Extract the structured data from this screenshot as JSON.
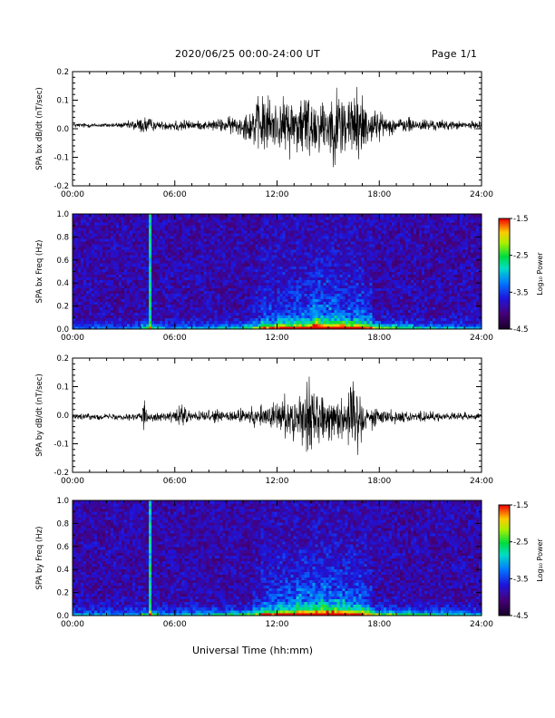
{
  "header": {
    "title": "2020/06/25  00:00-24:00 UT",
    "page": "Page 1/1"
  },
  "xaxis_title": "Universal Time (hh:mm)",
  "chart_data": [
    {
      "type": "line",
      "ylabel": "SPA bx dB/dt (nT/sec)",
      "xlim": [
        0,
        24
      ],
      "ylim": [
        -0.2,
        0.2
      ],
      "x_tick_labels": [
        "00:00",
        "06:00",
        "12:00",
        "18:00",
        "24:00"
      ],
      "y_tick_labels": [
        "-0.2",
        "-0.1",
        "0.0",
        "0.1",
        "0.2"
      ],
      "envelope": {
        "x": [
          0,
          2,
          3,
          4.3,
          5,
          6.4,
          7,
          8,
          9,
          10,
          10.5,
          11,
          11.5,
          12,
          12.5,
          13,
          13.5,
          14,
          14.5,
          15,
          15.5,
          16,
          16.5,
          17,
          17.5,
          18,
          18.5,
          19,
          20,
          21,
          22,
          23,
          24
        ],
        "amp": [
          0.012,
          0.012,
          0.014,
          0.05,
          0.018,
          0.04,
          0.02,
          0.025,
          0.04,
          0.06,
          0.1,
          0.15,
          0.17,
          0.11,
          0.14,
          0.16,
          0.18,
          0.19,
          0.14,
          0.16,
          0.19,
          0.2,
          0.2,
          0.17,
          0.1,
          0.07,
          0.05,
          0.04,
          0.04,
          0.03,
          0.025,
          0.02,
          0.02
        ]
      },
      "offset": 0.012
    },
    {
      "type": "heatmap",
      "ylabel": "SPA bx Freq (Hz)",
      "xlim": [
        0,
        24
      ],
      "ylim": [
        0,
        1.0
      ],
      "x_tick_labels": [
        "00:00",
        "06:00",
        "12:00",
        "18:00",
        "24:00"
      ],
      "y_tick_labels": [
        "0.0",
        "0.2",
        "0.4",
        "0.6",
        "0.8",
        "1.0"
      ],
      "colorbar": {
        "label": "Log₁₀ Power",
        "ticks": [
          "-1.5",
          "-2.5",
          "-3.5",
          "-4.5"
        ],
        "range": [
          -4.5,
          -1.5
        ]
      },
      "activity": [
        0.5,
        0.5,
        0.5,
        0.55,
        1.0,
        0.6,
        0.7,
        0.75,
        0.8,
        0.9,
        1.2,
        1.5,
        1.6,
        1.7,
        2.0,
        1.9,
        1.7,
        1.5,
        1.3,
        1.1,
        0.9,
        0.8,
        0.7,
        0.6
      ]
    },
    {
      "type": "line",
      "ylabel": "SPA by dB/dt (nT/sec)",
      "xlim": [
        0,
        24
      ],
      "ylim": [
        -0.2,
        0.2
      ],
      "x_tick_labels": [
        "00:00",
        "06:00",
        "12:00",
        "18:00",
        "24:00"
      ],
      "y_tick_labels": [
        "-0.2",
        "-0.1",
        "0.0",
        "0.1",
        "0.2"
      ],
      "envelope": {
        "x": [
          0,
          2,
          3,
          4,
          4.2,
          4.5,
          5,
          6,
          6.3,
          7,
          8,
          9,
          10,
          11,
          11.5,
          12,
          12.5,
          13,
          13.5,
          14,
          14.5,
          15,
          15.5,
          16,
          16.5,
          17,
          17.5,
          18,
          19,
          20,
          21,
          22,
          23,
          24
        ],
        "amp": [
          0.015,
          0.015,
          0.018,
          0.02,
          0.1,
          0.025,
          0.02,
          0.03,
          0.08,
          0.025,
          0.03,
          0.035,
          0.04,
          0.06,
          0.07,
          0.08,
          0.1,
          0.12,
          0.15,
          0.19,
          0.13,
          0.12,
          0.1,
          0.13,
          0.2,
          0.12,
          0.06,
          0.04,
          0.035,
          0.03,
          0.025,
          0.02,
          0.02,
          0.02
        ]
      },
      "offset": -0.005
    },
    {
      "type": "heatmap",
      "ylabel": "SPA by Freq (Hz)",
      "xlim": [
        0,
        24
      ],
      "ylim": [
        0,
        1.0
      ],
      "x_tick_labels": [
        "00:00",
        "06:00",
        "12:00",
        "18:00",
        "24:00"
      ],
      "y_tick_labels": [
        "0.0",
        "0.2",
        "0.4",
        "0.6",
        "0.8",
        "1.0"
      ],
      "colorbar": {
        "label": "Log₁₀ Power",
        "ticks": [
          "-1.5",
          "-2.5",
          "-3.5",
          "-4.5"
        ],
        "range": [
          -4.5,
          -1.5
        ]
      },
      "activity": [
        0.6,
        0.6,
        0.6,
        0.7,
        1.1,
        0.7,
        0.8,
        0.8,
        0.9,
        1.0,
        1.2,
        1.5,
        1.7,
        1.9,
        2.0,
        1.9,
        1.7,
        1.5,
        1.3,
        1.1,
        1.0,
        0.9,
        0.8,
        0.7
      ]
    }
  ]
}
